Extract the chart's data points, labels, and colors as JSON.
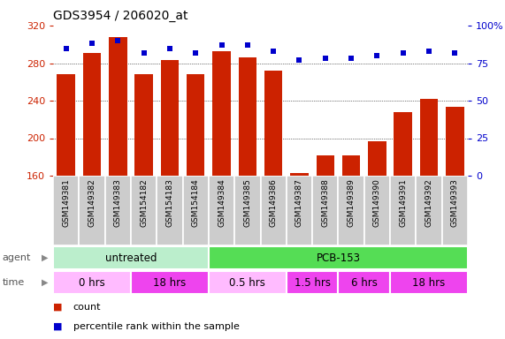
{
  "title": "GDS3954 / 206020_at",
  "samples": [
    "GSM149381",
    "GSM149382",
    "GSM149383",
    "GSM154182",
    "GSM154183",
    "GSM154184",
    "GSM149384",
    "GSM149385",
    "GSM149386",
    "GSM149387",
    "GSM149388",
    "GSM149389",
    "GSM149390",
    "GSM149391",
    "GSM149392",
    "GSM149393"
  ],
  "counts": [
    268,
    291,
    308,
    268,
    283,
    268,
    293,
    286,
    272,
    163,
    182,
    182,
    197,
    228,
    242,
    233
  ],
  "percentile_ranks": [
    85,
    88,
    90,
    82,
    85,
    82,
    87,
    87,
    83,
    77,
    78,
    78,
    80,
    82,
    83,
    82
  ],
  "ylim_left": [
    160,
    320
  ],
  "ylim_right": [
    0,
    100
  ],
  "yticks_left": [
    160,
    200,
    240,
    280,
    320
  ],
  "yticks_right": [
    0,
    25,
    50,
    75,
    100
  ],
  "bar_color": "#cc2200",
  "dot_color": "#0000cc",
  "agent_groups": [
    {
      "label": "untreated",
      "start": 0,
      "end": 6,
      "color": "#bbeecc"
    },
    {
      "label": "PCB-153",
      "start": 6,
      "end": 16,
      "color": "#55dd55"
    }
  ],
  "time_groups": [
    {
      "label": "0 hrs",
      "start": 0,
      "end": 3,
      "color": "#ffbbff"
    },
    {
      "label": "18 hrs",
      "start": 3,
      "end": 6,
      "color": "#ee44ee"
    },
    {
      "label": "0.5 hrs",
      "start": 6,
      "end": 9,
      "color": "#ffbbff"
    },
    {
      "label": "1.5 hrs",
      "start": 9,
      "end": 11,
      "color": "#ee44ee"
    },
    {
      "label": "6 hrs",
      "start": 11,
      "end": 13,
      "color": "#ee44ee"
    },
    {
      "label": "18 hrs",
      "start": 13,
      "end": 16,
      "color": "#ee44ee"
    }
  ],
  "grid_yticks": [
    200,
    240,
    280
  ],
  "xtick_bg_color": "#cccccc",
  "fig_width": 5.71,
  "fig_height": 3.84,
  "dpi": 100
}
